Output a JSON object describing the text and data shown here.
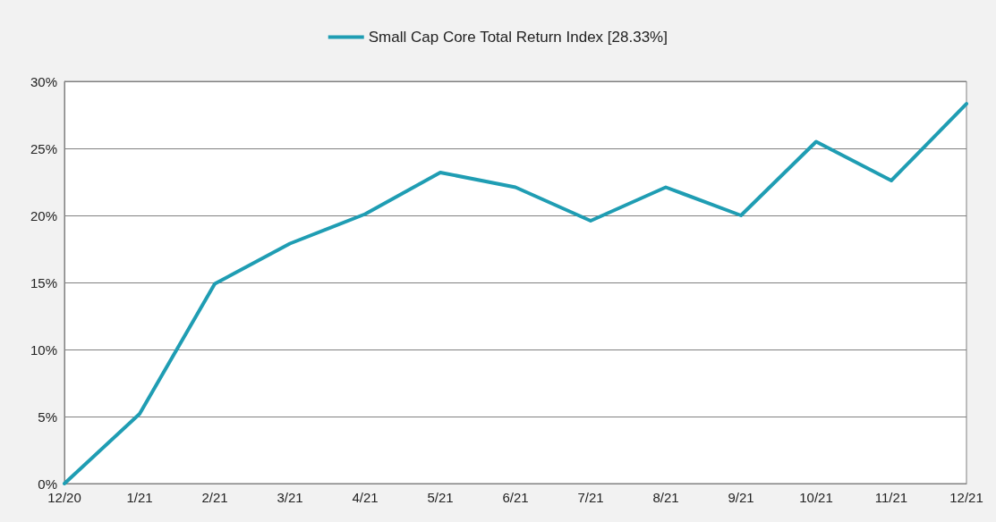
{
  "chart_data": {
    "type": "line",
    "categories": [
      "12/20",
      "1/21",
      "2/21",
      "3/21",
      "4/21",
      "5/21",
      "6/21",
      "7/21",
      "8/21",
      "9/21",
      "10/21",
      "11/21",
      "12/21"
    ],
    "series": [
      {
        "name": "Small Cap Core Total Return Index [28.33%]",
        "color": "#1f9db3",
        "values": [
          0,
          5.2,
          14.9,
          17.9,
          20.1,
          23.2,
          22.1,
          19.6,
          22.1,
          20.0,
          25.5,
          22.6,
          28.33
        ]
      }
    ],
    "ylim": [
      0,
      30
    ],
    "yticks": [
      {
        "value": 0,
        "label": "0%"
      },
      {
        "value": 5,
        "label": "5%"
      },
      {
        "value": 10,
        "label": "10%"
      },
      {
        "value": 15,
        "label": "15%"
      },
      {
        "value": 20,
        "label": "20%"
      },
      {
        "value": 25,
        "label": "25%"
      },
      {
        "value": 30,
        "label": "30%"
      }
    ],
    "grid": "y",
    "legend": "top",
    "marker": "none",
    "line_style": "solid"
  }
}
